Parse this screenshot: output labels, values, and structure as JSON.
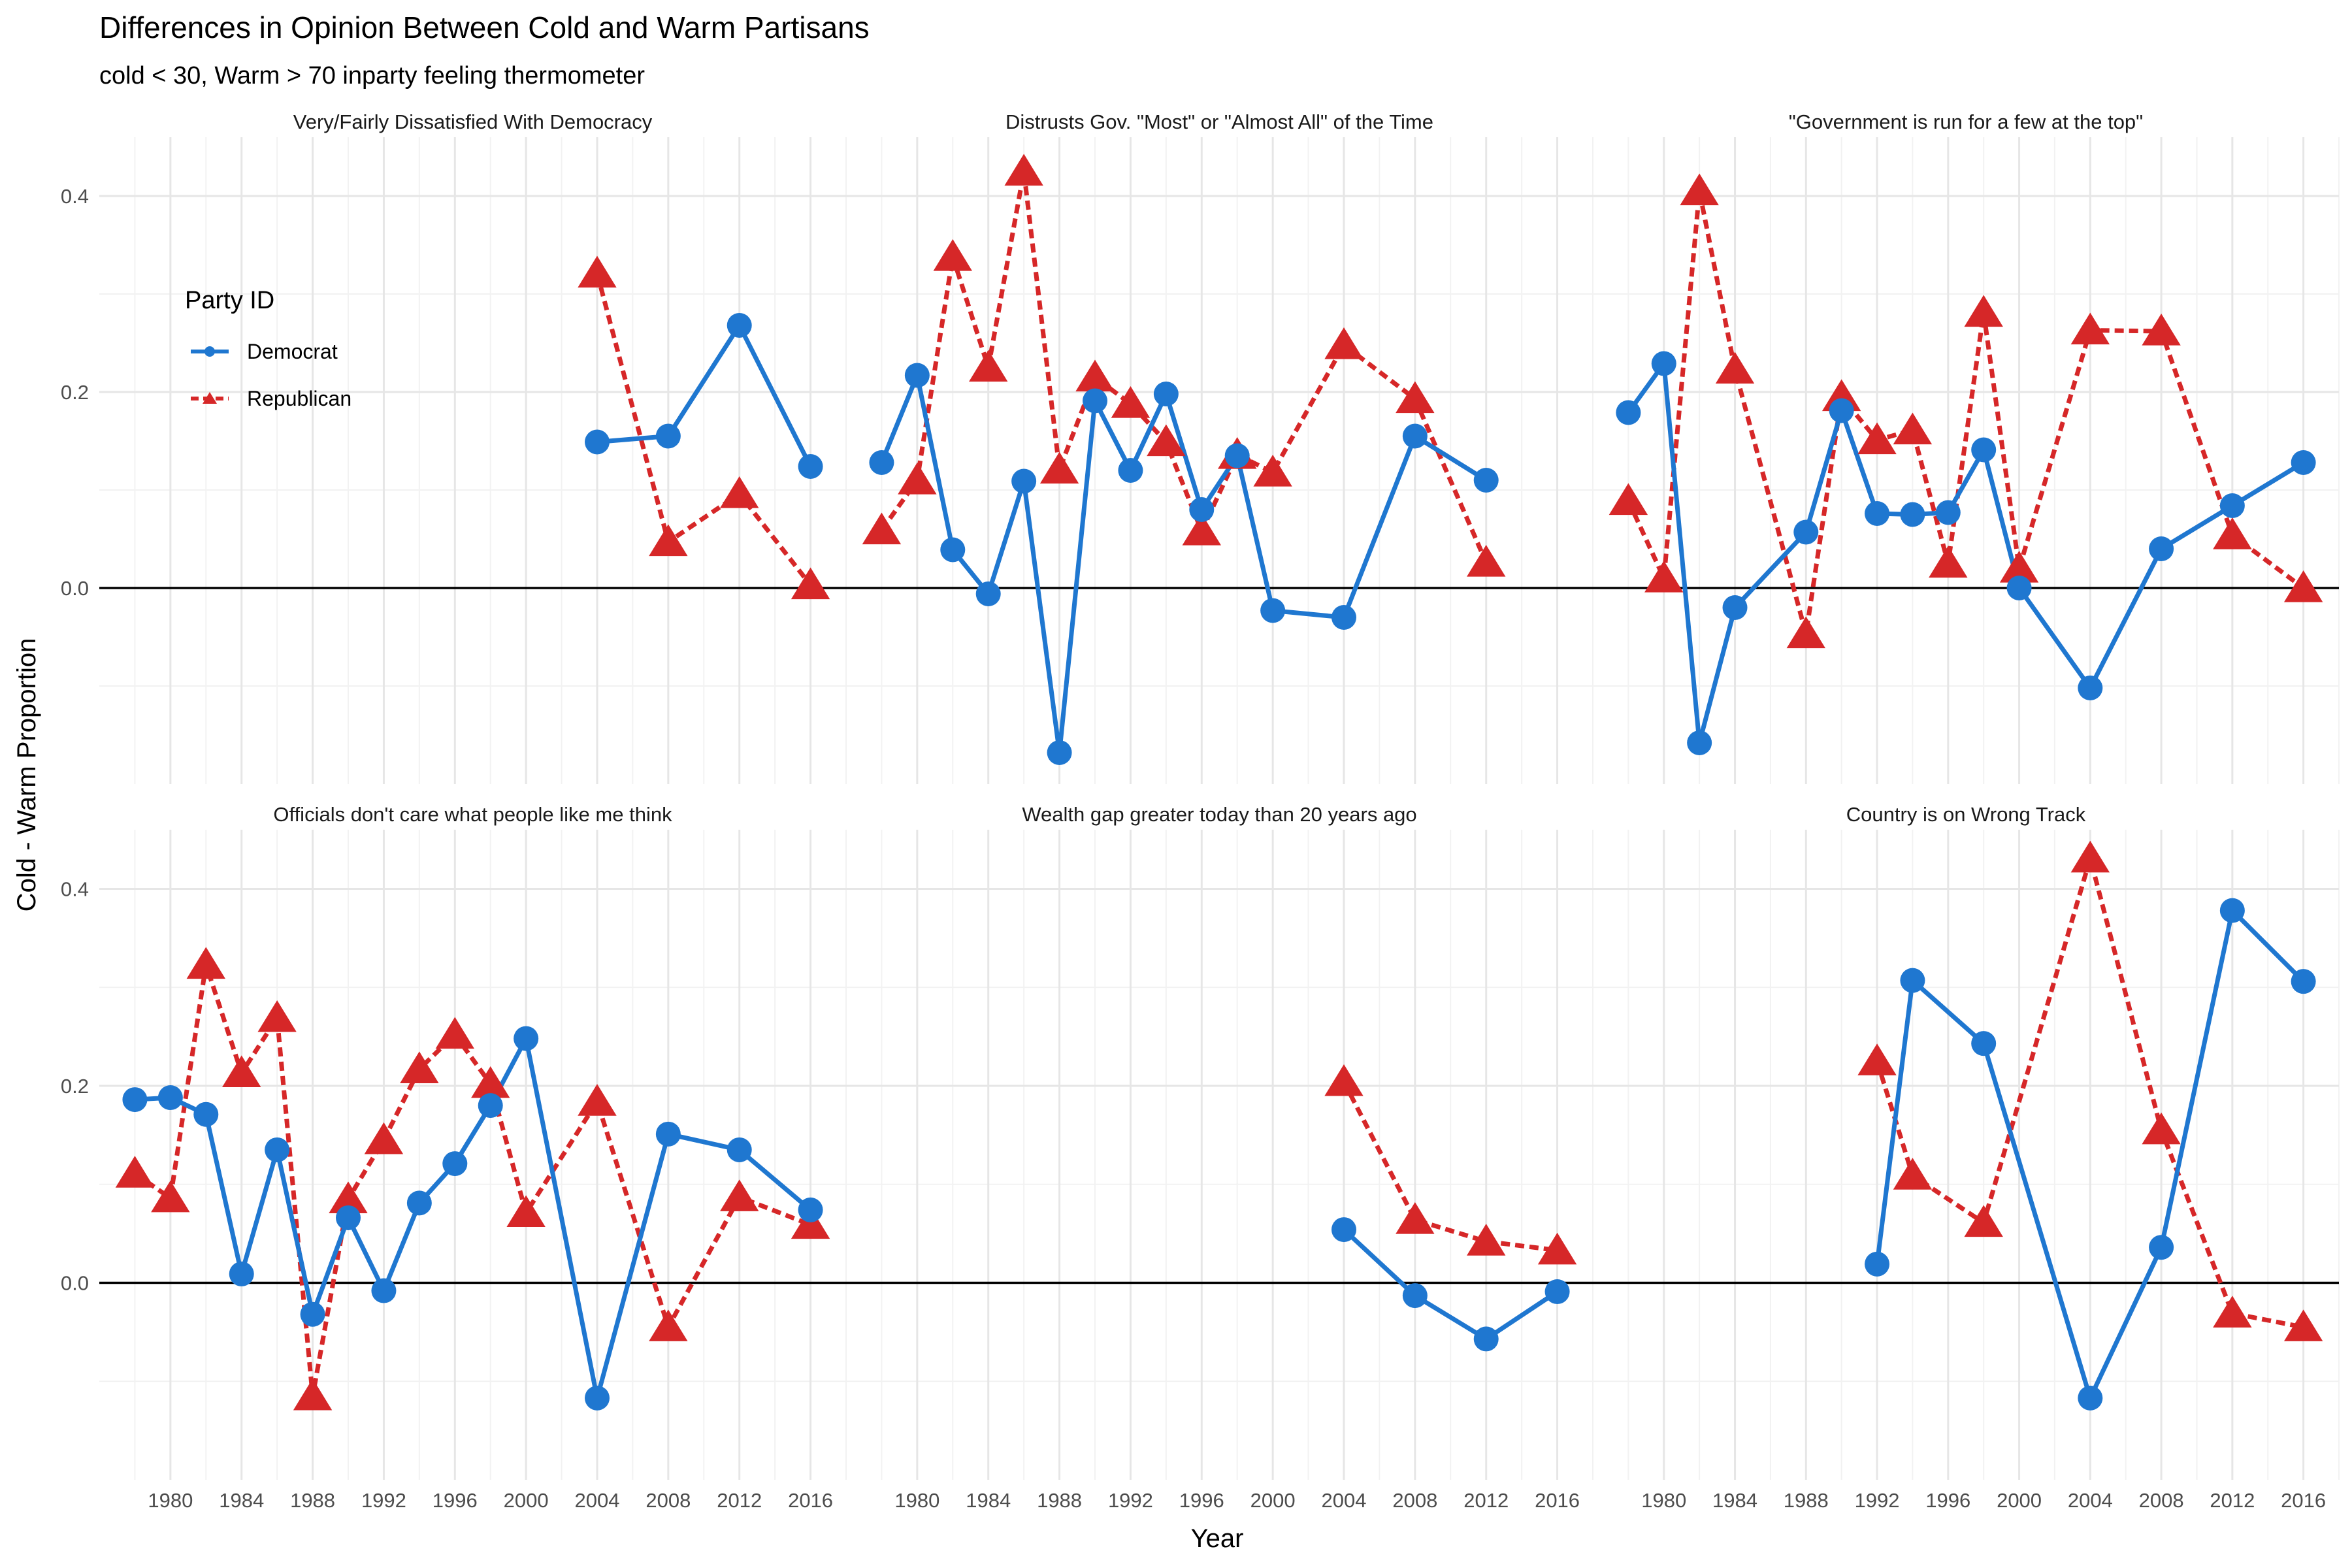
{
  "chart_data": {
    "type": "line",
    "title": "Differences in Opinion Between Cold and Warm Partisans",
    "subtitle": "cold < 30, Warm > 70 inparty feeling thermometer",
    "xlabel": "Year",
    "ylabel": "Cold - Warm Proportion",
    "xlim": [
      1976,
      2018
    ],
    "ylim": [
      -0.2,
      0.46
    ],
    "x_ticks": [
      1980,
      1984,
      1988,
      1992,
      1996,
      2000,
      2004,
      2008,
      2012,
      2016
    ],
    "x_tick_labels": [
      "1980",
      "1984",
      "1988",
      "1992",
      "1996",
      "2000",
      "2004",
      "2008",
      "2012",
      "2016"
    ],
    "y_ticks": [
      0.0,
      0.2,
      0.4
    ],
    "y_tick_labels": [
      "0.0",
      "0.2",
      "0.4"
    ],
    "grid": true,
    "reference_line_y": 0,
    "legend": {
      "title": "Party ID",
      "placement": "top-left of first panel",
      "entries": [
        {
          "name": "Democrat",
          "color": "#1f77d0",
          "marker": "circle",
          "line": "solid"
        },
        {
          "name": "Republican",
          "color": "#d62728",
          "marker": "triangle",
          "line": "dashed"
        }
      ]
    },
    "panels": [
      {
        "title": "Very/Fairly Dissatisfied With Democracy",
        "series": [
          {
            "name": "Democrat",
            "x": [
              2004,
              2008,
              2012,
              2016
            ],
            "y": [
              0.149,
              0.155,
              0.268,
              0.124
            ]
          },
          {
            "name": "Republican",
            "x": [
              2004,
              2008,
              2012,
              2016
            ],
            "y": [
              0.321,
              0.047,
              0.096,
              0.003
            ]
          }
        ]
      },
      {
        "title": "Distrusts Gov. \"Most\" or \"Almost All\" of the Time",
        "series": [
          {
            "name": "Democrat",
            "x": [
              1978,
              1980,
              1982,
              1984,
              1986,
              1988,
              1990,
              1992,
              1994,
              1996,
              1998,
              2000,
              2004,
              2008,
              2012
            ],
            "y": [
              0.128,
              0.217,
              0.039,
              -0.006,
              0.109,
              -0.168,
              0.191,
              0.12,
              0.198,
              0.08,
              0.135,
              -0.023,
              -0.03,
              0.155,
              0.11
            ]
          },
          {
            "name": "Republican",
            "x": [
              1978,
              1980,
              1982,
              1984,
              1986,
              1988,
              1990,
              1992,
              1994,
              1996,
              1998,
              2000,
              2004,
              2008,
              2012
            ],
            "y": [
              0.059,
              0.11,
              0.338,
              0.225,
              0.425,
              0.121,
              0.215,
              0.188,
              0.149,
              0.058,
              0.136,
              0.118,
              0.248,
              0.193,
              0.026
            ]
          }
        ]
      },
      {
        "title": "\"Government is run for a few at the top\"",
        "series": [
          {
            "name": "Democrat",
            "x": [
              1978,
              1980,
              1982,
              1984,
              1988,
              1990,
              1992,
              1994,
              1996,
              1998,
              2000,
              2004,
              2008,
              2012,
              2016
            ],
            "y": [
              0.179,
              0.229,
              -0.158,
              -0.02,
              0.057,
              0.181,
              0.076,
              0.075,
              0.077,
              0.141,
              0.0,
              -0.102,
              0.04,
              0.084,
              0.128
            ]
          },
          {
            "name": "Republican",
            "x": [
              1978,
              1980,
              1982,
              1984,
              1988,
              1990,
              1992,
              1994,
              1996,
              1998,
              2000,
              2004,
              2008,
              2012,
              2016
            ],
            "y": [
              0.089,
              0.01,
              0.405,
              0.223,
              -0.047,
              0.195,
              0.151,
              0.161,
              0.025,
              0.281,
              0.02,
              0.263,
              0.262,
              0.054,
              0.0
            ]
          }
        ]
      },
      {
        "title": "Officials don't care what people like me think",
        "series": [
          {
            "name": "Democrat",
            "x": [
              1978,
              1980,
              1982,
              1984,
              1986,
              1988,
              1990,
              1992,
              1994,
              1996,
              1998,
              2000,
              2004,
              2008,
              2012,
              2016
            ],
            "y": [
              0.186,
              0.188,
              0.171,
              0.009,
              0.135,
              -0.032,
              0.066,
              -0.008,
              0.081,
              0.121,
              0.18,
              0.248,
              -0.117,
              0.151,
              0.135,
              0.074
            ]
          },
          {
            "name": "Republican",
            "x": [
              1978,
              1980,
              1982,
              1984,
              1986,
              1988,
              1990,
              1992,
              1994,
              1996,
              1998,
              2000,
              2004,
              2008,
              2012,
              2016
            ],
            "y": [
              0.111,
              0.086,
              0.323,
              0.213,
              0.269,
              -0.115,
              0.085,
              0.145,
              0.217,
              0.252,
              0.202,
              0.071,
              0.184,
              -0.045,
              0.087,
              0.059
            ]
          }
        ]
      },
      {
        "title": "Wealth gap greater today than 20 years ago",
        "series": [
          {
            "name": "Democrat",
            "x": [
              2004,
              2008,
              2012,
              2016
            ],
            "y": [
              0.054,
              -0.013,
              -0.057,
              -0.009
            ]
          },
          {
            "name": "Republican",
            "x": [
              2004,
              2008,
              2012,
              2016
            ],
            "y": [
              0.204,
              0.064,
              0.042,
              0.033
            ]
          }
        ]
      },
      {
        "title": "Country is on Wrong Track",
        "series": [
          {
            "name": "Democrat",
            "x": [
              1992,
              1994,
              1998,
              2004,
              2008,
              2012,
              2016
            ],
            "y": [
              0.019,
              0.307,
              0.243,
              -0.117,
              0.036,
              0.378,
              0.306
            ]
          },
          {
            "name": "Republican",
            "x": [
              1992,
              1994,
              1998,
              2004,
              2008,
              2012,
              2016
            ],
            "y": [
              0.225,
              0.109,
              0.061,
              0.431,
              0.155,
              -0.031,
              -0.045
            ]
          }
        ]
      }
    ]
  }
}
